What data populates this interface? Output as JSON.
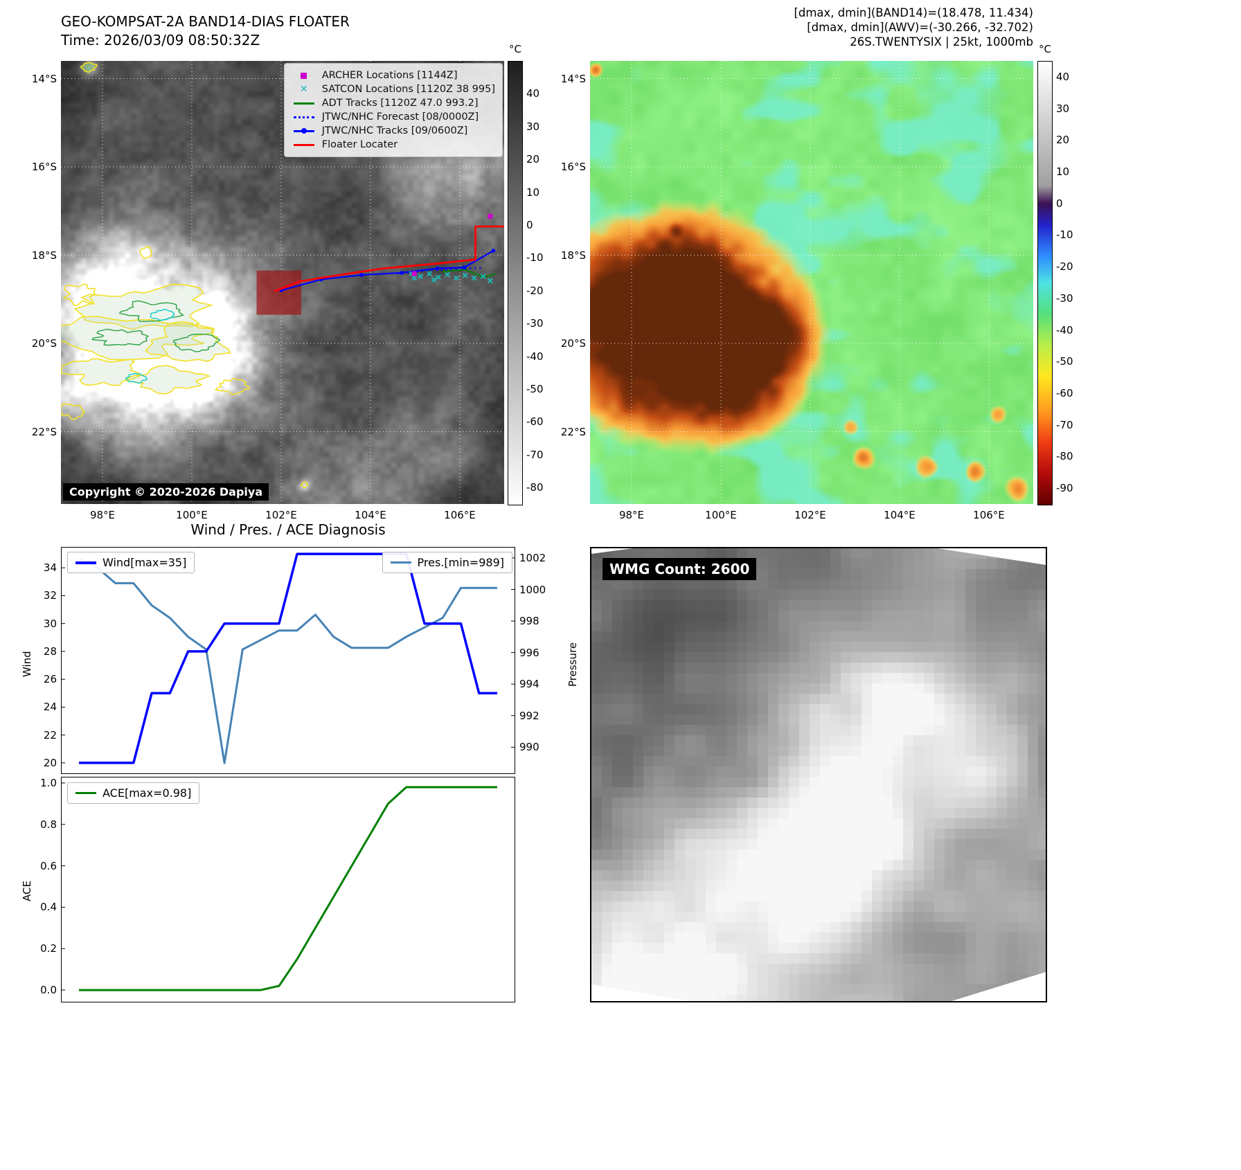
{
  "panel_ir": {
    "title_line1": "GEO-KOMPSAT-2A BAND14-DIAS FLOATER",
    "title_line2": "Time: 2026/03/09 08:50:32Z",
    "copyright": "Copyright © 2020-2026 Dapiya",
    "x_tick_labels": [
      "98°E",
      "100°E",
      "102°E",
      "104°E",
      "106°E"
    ],
    "x_tick_lons": [
      98,
      100,
      102,
      104,
      106
    ],
    "y_tick_labels": [
      "14°S",
      "16°S",
      "18°S",
      "20°S",
      "22°S"
    ],
    "y_tick_lats": [
      -14,
      -16,
      -18,
      -20,
      -22
    ],
    "colorbar": {
      "unit": "°C",
      "tick_values": [
        40,
        30,
        20,
        10,
        0,
        -10,
        -20,
        -30,
        -40,
        -50,
        -60,
        -70,
        -80
      ],
      "domain": [
        50,
        -85
      ],
      "stops": [
        "#1e1e1e 0%",
        "#ffffff 100%"
      ]
    },
    "legend": [
      {
        "label": "ARCHER Locations [1144Z]",
        "color": "#cc00cc",
        "glyph": "square"
      },
      {
        "label": "SATCON Locations [1120Z 38 995]",
        "color": "#1cb8b8",
        "glyph": "x"
      },
      {
        "label": "ADT Tracks [1120Z 47.0 993.2]",
        "color": "#008000",
        "glyph": "line"
      },
      {
        "label": "JTWC/NHC Forecast [08/0000Z]",
        "color": "#0000ff",
        "glyph": "dotted"
      },
      {
        "label": "JTWC/NHC Tracks [09/0600Z]",
        "color": "#0000ff",
        "glyph": "line-dot"
      },
      {
        "label": "Floater Locater",
        "color": "#ff0000",
        "glyph": "line"
      }
    ],
    "overlays": {
      "floater_track": [
        [
          101.85,
          -18.82
        ],
        [
          102.4,
          -18.6
        ],
        [
          103.3,
          -18.45
        ],
        [
          104.3,
          -18.3
        ],
        [
          105.4,
          -18.2
        ],
        [
          106.35,
          -18.1
        ],
        [
          106.35,
          -17.35
        ],
        [
          107.05,
          -17.35
        ]
      ],
      "jtwc_track": [
        [
          102.0,
          -18.8
        ],
        [
          102.9,
          -18.55
        ],
        [
          103.8,
          -18.45
        ],
        [
          104.7,
          -18.4
        ],
        [
          105.5,
          -18.3
        ],
        [
          106.1,
          -18.28
        ],
        [
          106.75,
          -17.9
        ]
      ],
      "jtwc_forecast": [
        [
          104.6,
          -18.42
        ],
        [
          105.3,
          -18.35
        ],
        [
          105.9,
          -18.32
        ],
        [
          106.5,
          -18.28
        ]
      ],
      "adt_track": [
        [
          105.6,
          -18.38
        ],
        [
          106.1,
          -18.33
        ],
        [
          106.55,
          -18.5
        ],
        [
          106.8,
          -18.42
        ]
      ],
      "satcon_points": [
        [
          104.92,
          -18.42
        ],
        [
          105.12,
          -18.48
        ],
        [
          105.32,
          -18.42
        ],
        [
          105.52,
          -18.5
        ],
        [
          105.72,
          -18.44
        ],
        [
          105.92,
          -18.52
        ],
        [
          106.12,
          -18.46
        ],
        [
          106.32,
          -18.52
        ],
        [
          106.52,
          -18.48
        ],
        [
          106.68,
          -18.58
        ],
        [
          104.98,
          -18.52
        ],
        [
          105.42,
          -18.56
        ]
      ],
      "archer_points": [
        [
          106.68,
          -17.12
        ],
        [
          104.98,
          -18.42
        ]
      ],
      "highlight_box": {
        "lon_min": 101.45,
        "lon_max": 102.45,
        "lat_min": -19.35,
        "lat_max": -18.35
      }
    }
  },
  "panel_awv": {
    "header_line1": "[dmax, dmin](BAND14)=(18.478, 11.434)",
    "header_line2": "[dmax, dmin](AWV)=(-30.266, -32.702)",
    "header_line3": "26S.TWENTYSIX | 25kt, 1000mb",
    "x_tick_labels": [
      "98°E",
      "100°E",
      "102°E",
      "104°E",
      "106°E"
    ],
    "x_tick_lons": [
      98,
      100,
      102,
      104,
      106
    ],
    "y_tick_labels": [
      "14°S",
      "16°S",
      "18°S",
      "20°S",
      "22°S"
    ],
    "y_tick_lats": [
      -14,
      -16,
      -18,
      -20,
      -22
    ],
    "colorbar": {
      "unit": "°C",
      "tick_values": [
        40,
        30,
        20,
        10,
        0,
        -10,
        -20,
        -30,
        -40,
        -50,
        -60,
        -70,
        -80,
        -90
      ],
      "domain": [
        45,
        -95
      ],
      "stops": [
        "#ffffff 0%",
        "#a0a0a0 28%",
        "#3c1053 32%",
        "#2323cc 37%",
        "#2f8fff 44%",
        "#4fe3e3 50%",
        "#55e07a 57%",
        "#b8ee49 64%",
        "#ffe81e 71%",
        "#ff9a1e 79%",
        "#f03c14 86%",
        "#b40a0a 93%",
        "#5f0000 100%"
      ]
    }
  },
  "diagnosis": {
    "title": "Wind / Pres. / ACE Diagnosis",
    "wind_legend": "Wind[max=35]",
    "pres_legend": "Pres.[min=989]",
    "ace_legend": "ACE[max=0.98]",
    "ylabel_wind": "Wind",
    "ylabel_pressure": "Pressure",
    "ylabel_ace": "ACE"
  },
  "wmg": {
    "label": "WMG Count: 2600"
  },
  "chart_data": [
    {
      "type": "line",
      "title": "Wind / Pres. / ACE Diagnosis",
      "x": [
        0,
        1,
        2,
        3,
        4,
        5,
        6,
        7,
        8,
        9,
        10,
        11,
        12,
        13,
        14,
        15,
        16,
        17,
        18,
        19,
        20,
        21,
        22,
        23
      ],
      "series": [
        {
          "name": "Pres.[min=989]",
          "axis": "right",
          "color": "#4682b4",
          "width": 3,
          "values": [
            1002,
            1001.4,
            1000.4,
            1000.4,
            999,
            998.2,
            997,
            996.2,
            989,
            996.2,
            996.8,
            997.4,
            997.4,
            998.4,
            997,
            996.3,
            996.3,
            996.3,
            997,
            997.6,
            998.2,
            1000.1,
            1000.1,
            1000.1
          ]
        },
        {
          "name": "Wind[max=35]",
          "axis": "left",
          "color": "#0000ff",
          "width": 3.5,
          "values": [
            20,
            20,
            20,
            20,
            25,
            25,
            28,
            28,
            30,
            30,
            30,
            30,
            35,
            35,
            35,
            35,
            35,
            35,
            35,
            30,
            30,
            30,
            25,
            25
          ]
        }
      ],
      "ylabel_left": "Wind",
      "ylabel_right": "Pressure",
      "ylim_left": [
        19.2,
        35.5
      ],
      "ylim_right": [
        988.3,
        1002.7
      ],
      "yticks_left": [
        20,
        22,
        24,
        26,
        28,
        30,
        32,
        34
      ],
      "yticks_right": [
        990,
        992,
        994,
        996,
        998,
        1000,
        1002
      ],
      "x_tick_labels_hidden": true
    },
    {
      "type": "line",
      "x": [
        0,
        1,
        2,
        3,
        4,
        5,
        6,
        7,
        8,
        9,
        10,
        11,
        12,
        13,
        14,
        15,
        16,
        17,
        18,
        19,
        20,
        21,
        22,
        23
      ],
      "series": [
        {
          "name": "ACE[max=0.98]",
          "color": "#008000",
          "width": 3,
          "values": [
            0,
            0,
            0,
            0,
            0,
            0,
            0,
            0,
            0,
            0,
            0,
            0.02,
            0.15,
            0.3,
            0.45,
            0.6,
            0.75,
            0.9,
            0.98,
            0.98,
            0.98,
            0.98,
            0.98,
            0.98
          ]
        }
      ],
      "ylabel": "ACE",
      "ylim": [
        -0.06,
        1.03
      ],
      "yticks": [
        0,
        0.2,
        0.4,
        0.6,
        0.8,
        1
      ],
      "x_tick_labels_hidden": true
    }
  ]
}
